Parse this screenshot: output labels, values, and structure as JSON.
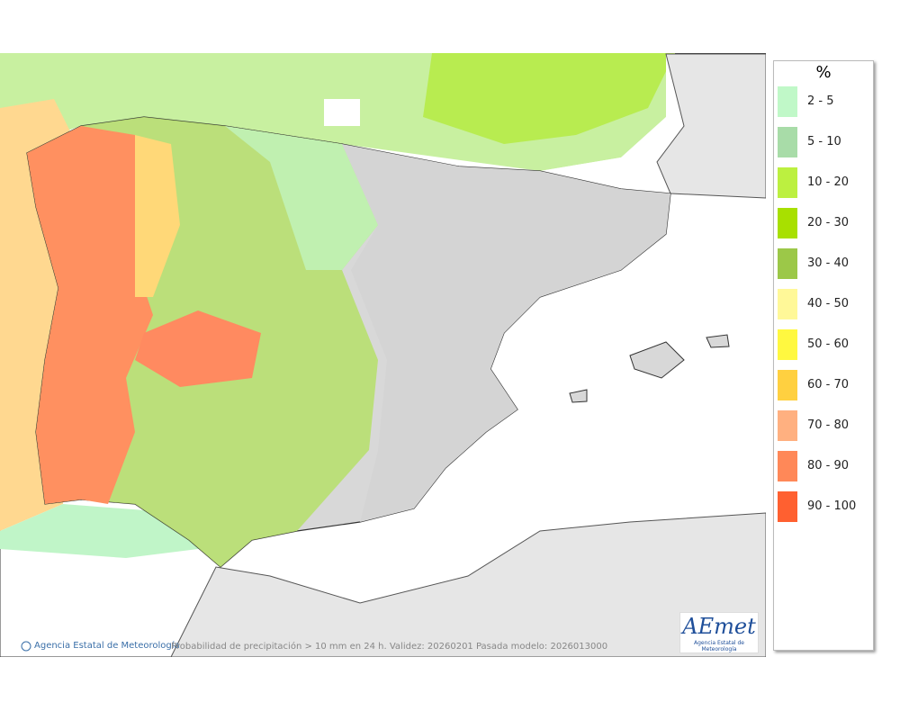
{
  "legend": {
    "title": "%",
    "items": [
      {
        "label": "2 - 5",
        "color": "#c0f8c8"
      },
      {
        "label": "5 - 10",
        "color": "#a8dca8"
      },
      {
        "label": "10 - 20",
        "color": "#bcf040"
      },
      {
        "label": "20 - 30",
        "color": "#a8e000"
      },
      {
        "label": "30 - 40",
        "color": "#9cc848"
      },
      {
        "label": "40 - 50",
        "color": "#fff898"
      },
      {
        "label": "50 - 60",
        "color": "#fff840"
      },
      {
        "label": "60 - 70",
        "color": "#ffd040"
      },
      {
        "label": "70 - 80",
        "color": "#ffb080"
      },
      {
        "label": "80 - 90",
        "color": "#ff8858"
      },
      {
        "label": "90 - 100",
        "color": "#ff6030"
      }
    ]
  },
  "footer": {
    "credit": "Agencia Estatal de Meteorología",
    "caption": "Probabilidad de precipitación > 10 mm en 24 h. Validez: 20260201 Pasada modelo: 2026013000"
  },
  "logo": {
    "name": "AEmet",
    "subtitle": "Agencia Estatal de Meteorología"
  }
}
